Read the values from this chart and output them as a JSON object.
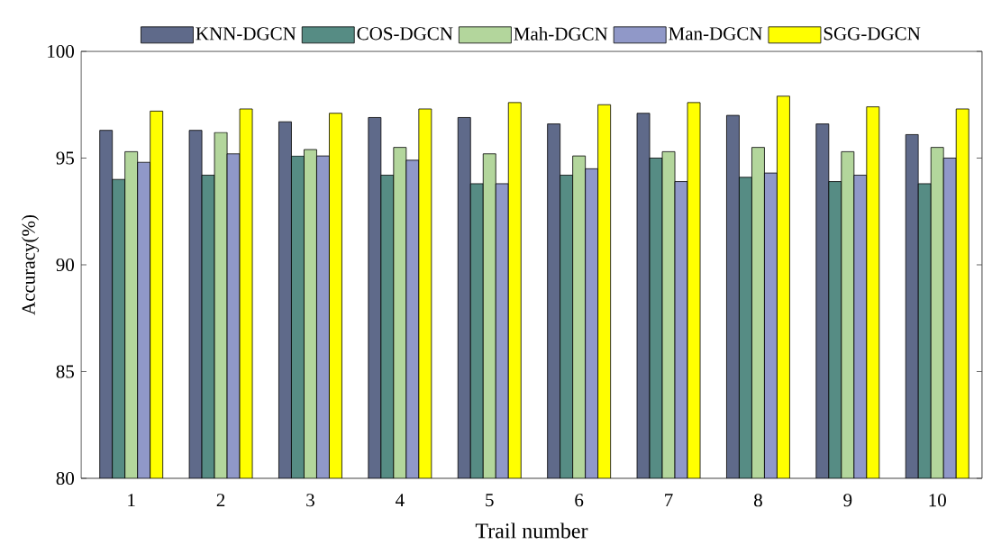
{
  "chart_data": {
    "type": "bar",
    "xlabel": "Trail number",
    "ylabel": "Accuracy(%)",
    "categories": [
      "1",
      "2",
      "3",
      "4",
      "5",
      "6",
      "7",
      "8",
      "9",
      "10"
    ],
    "series": [
      {
        "name": "KNN-DGCN",
        "color": "#5f6a8a",
        "values": [
          96.3,
          96.3,
          96.7,
          96.9,
          96.9,
          96.6,
          97.1,
          97.0,
          96.6,
          96.1
        ]
      },
      {
        "name": "COS-DGCN",
        "color": "#568c84",
        "values": [
          94.0,
          94.2,
          95.1,
          94.2,
          93.8,
          94.2,
          95.0,
          94.1,
          93.9,
          93.8
        ]
      },
      {
        "name": "Mah-DGCN",
        "color": "#b3d69c",
        "values": [
          95.3,
          96.2,
          95.4,
          95.5,
          95.2,
          95.1,
          95.3,
          95.5,
          95.3,
          95.5
        ]
      },
      {
        "name": "Man-DGCN",
        "color": "#9098c8",
        "values": [
          94.8,
          95.2,
          95.1,
          94.9,
          93.8,
          94.5,
          93.9,
          94.3,
          94.2,
          95.0
        ]
      },
      {
        "name": "SGG-DGCN",
        "color": "#ffff00",
        "values": [
          97.2,
          97.3,
          97.1,
          97.3,
          97.6,
          97.5,
          97.6,
          97.9,
          97.4,
          97.3
        ]
      }
    ],
    "ylim": [
      80,
      100
    ],
    "yticks": [
      80,
      85,
      90,
      95,
      100
    ],
    "grid": false,
    "legend": "top"
  }
}
